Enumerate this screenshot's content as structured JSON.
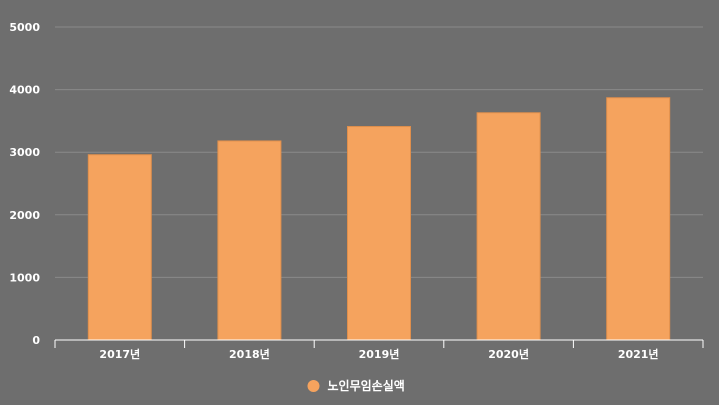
{
  "chart_data": {
    "type": "bar",
    "categories": [
      "2017년",
      "2018년",
      "2019년",
      "2020년",
      "2021년"
    ],
    "series": [
      {
        "name": "노인무임손실액",
        "values": [
          2960,
          3180,
          3410,
          3630,
          3870
        ]
      }
    ],
    "ylim": [
      0,
      5000
    ],
    "yticks": [
      0,
      1000,
      2000,
      3000,
      4000,
      5000
    ],
    "grid": true,
    "legend_position": "bottom"
  },
  "colors": {
    "background": "#6e6e6e",
    "bar": "#f5a35e",
    "grid": "#8a8a8a",
    "axis": "#ffffff",
    "text": "#ffffff"
  }
}
